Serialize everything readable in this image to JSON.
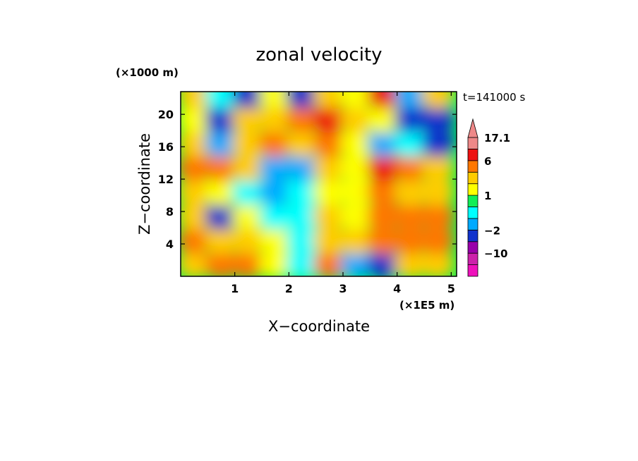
{
  "chart_data": {
    "type": "heatmap",
    "title": "zonal velocity",
    "xlabel": "X−coordinate",
    "ylabel": "Z−coordinate",
    "x_unit": "(×1E5 m)",
    "y_unit": "(×1000 m)",
    "time_label": "t=141000 s",
    "xlim": [
      0,
      5.1
    ],
    "ylim": [
      0,
      22.8
    ],
    "x_ticks": [
      1,
      2,
      3,
      4,
      5
    ],
    "x_tick_labels": [
      "1",
      "2",
      "3",
      "4",
      "5"
    ],
    "y_ticks": [
      4,
      8,
      12,
      16,
      20
    ],
    "y_tick_labels": [
      "4",
      "8",
      "12",
      "16",
      "20"
    ],
    "grid_x": [
      0.25,
      0.75,
      1.25,
      1.75,
      2.25,
      2.75,
      3.25,
      3.75,
      4.25,
      4.75
    ],
    "grid_z": [
      1.5,
      4.5,
      7.5,
      10.5,
      13.5,
      16.5,
      19.5,
      22.5
    ],
    "values": [
      [
        3,
        4,
        4,
        1,
        0,
        4,
        -2,
        -3,
        3,
        2
      ],
      [
        4,
        3,
        2,
        1,
        0,
        2,
        2,
        4,
        4,
        5
      ],
      [
        2,
        -3,
        1,
        0,
        0,
        3,
        1,
        4,
        5,
        4
      ],
      [
        3,
        1,
        0,
        -1,
        0,
        1,
        1,
        5,
        3,
        2
      ],
      [
        4,
        5,
        2,
        -1,
        -2,
        2,
        1,
        6,
        4,
        2
      ],
      [
        3,
        -2,
        3,
        4,
        2,
        4,
        1,
        -1,
        0,
        -4
      ],
      [
        1,
        -3,
        2,
        3,
        5,
        6,
        3,
        1,
        -5,
        -5
      ],
      [
        2,
        0,
        -3,
        1,
        -3,
        2,
        1,
        6,
        -2,
        3
      ]
    ],
    "colorbar": {
      "levels": [
        -17,
        -14,
        -10,
        -6,
        -2,
        -0.5,
        0.5,
        1,
        2,
        4,
        6,
        11,
        17.1
      ],
      "colors": [
        "#ee11bb",
        "#cc22aa",
        "#9900aa",
        "#1133cc",
        "#00aaff",
        "#00ffff",
        "#11ee55",
        "#ffff00",
        "#ffcc00",
        "#ff7700",
        "#ee1111",
        "#ee8888"
      ],
      "labels": [
        "17.1",
        "6",
        "1",
        "−2",
        "−10"
      ],
      "label_values": [
        17.1,
        6,
        1,
        -2,
        -10
      ],
      "extend": "max"
    }
  }
}
